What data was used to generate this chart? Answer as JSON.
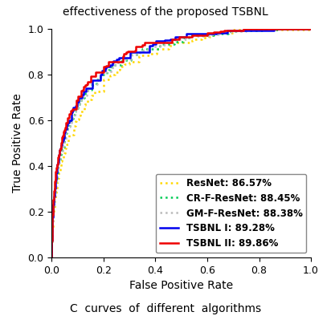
{
  "title_top": "effectiveness of the proposed TSBNL",
  "title_bottom": "C  curves  of  different  algorithms",
  "xlabel": "False Positive Rate",
  "ylabel": "True Positive Rate",
  "xlim": [
    0.0,
    1.0
  ],
  "ylim": [
    0.0,
    1.0
  ],
  "xticks": [
    0.0,
    0.2,
    0.4,
    0.6,
    0.8,
    1.0
  ],
  "yticks": [
    0.0,
    0.2,
    0.4,
    0.6,
    0.8,
    1.0
  ],
  "legend_entries": [
    {
      "label": "ResNet: 86.57%",
      "color": "#FFD700",
      "linestyle": "dotted",
      "linewidth": 1.8
    },
    {
      "label": "CR-F-ResNet: 88.45%",
      "color": "#00CC55",
      "linestyle": "dotted",
      "linewidth": 1.8
    },
    {
      "label": "GM-F-ResNet: 88.38%",
      "color": "#BBBBBB",
      "linestyle": "dotted",
      "linewidth": 1.8
    },
    {
      "label": "TSBNL I: 89.28%",
      "color": "#0000EE",
      "linestyle": "solid",
      "linewidth": 1.8
    },
    {
      "label": "TSBNL II: 89.86%",
      "color": "#EE0000",
      "linestyle": "solid",
      "linewidth": 1.8
    }
  ],
  "curve_params": [
    {
      "mu": 1.9,
      "sigma": 1.0,
      "auc": 0.8657,
      "seed": 42
    },
    {
      "mu": 2.1,
      "sigma": 1.0,
      "auc": 0.8845,
      "seed": 7
    },
    {
      "mu": 2.08,
      "sigma": 1.0,
      "auc": 0.8838,
      "seed": 15
    },
    {
      "mu": 2.25,
      "sigma": 1.0,
      "auc": 0.8928,
      "seed": 3
    },
    {
      "mu": 2.35,
      "sigma": 1.0,
      "auc": 0.8986,
      "seed": 99
    }
  ],
  "background_color": "#FFFFFF",
  "legend_fontsize": 8.5,
  "axis_label_fontsize": 10,
  "tick_fontsize": 9,
  "title_fontsize": 10,
  "caption_fontsize": 10
}
